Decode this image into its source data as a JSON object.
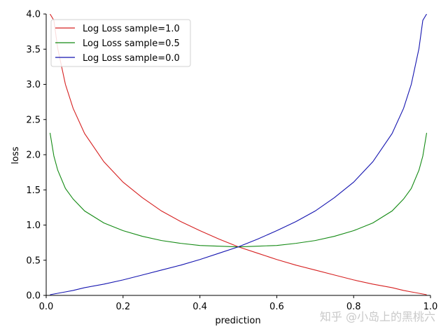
{
  "chart_data": {
    "type": "line",
    "title": "",
    "xlabel": "prediction",
    "ylabel": "loss",
    "xlim": [
      0.0,
      1.0
    ],
    "ylim": [
      0.0,
      4.0
    ],
    "x_ticks": [
      0.0,
      0.2,
      0.4,
      0.6,
      0.8,
      1.0
    ],
    "x_tick_labels": [
      "0.0",
      "0.2",
      "0.4",
      "0.6",
      "0.8",
      "1.0"
    ],
    "y_ticks": [
      0.0,
      0.5,
      1.0,
      1.5,
      2.0,
      2.5,
      3.0,
      3.5,
      4.0
    ],
    "y_tick_labels": [
      "0.0",
      "0.5",
      "1.0",
      "1.5",
      "2.0",
      "2.5",
      "3.0",
      "3.5",
      "4.0"
    ],
    "grid": false,
    "legend_position": "top-left",
    "x": [
      0.01,
      0.02,
      0.03,
      0.05,
      0.07,
      0.1,
      0.15,
      0.2,
      0.25,
      0.3,
      0.35,
      0.4,
      0.45,
      0.5,
      0.55,
      0.6,
      0.65,
      0.7,
      0.75,
      0.8,
      0.85,
      0.9,
      0.93,
      0.95,
      0.97,
      0.98,
      0.99
    ],
    "series": [
      {
        "name": "Log Loss sample=1.0",
        "color": "#d62020",
        "values": [
          4.0,
          3.91,
          3.51,
          3.0,
          2.66,
          2.3,
          1.9,
          1.61,
          1.39,
          1.2,
          1.05,
          0.92,
          0.8,
          0.69,
          0.6,
          0.51,
          0.43,
          0.36,
          0.29,
          0.22,
          0.16,
          0.11,
          0.07,
          0.05,
          0.03,
          0.02,
          0.01
        ]
      },
      {
        "name": "Log Loss sample=0.5",
        "color": "#138a13",
        "values": [
          2.31,
          1.98,
          1.78,
          1.52,
          1.37,
          1.2,
          1.03,
          0.92,
          0.84,
          0.78,
          0.74,
          0.71,
          0.7,
          0.69,
          0.7,
          0.71,
          0.74,
          0.78,
          0.84,
          0.92,
          1.03,
          1.2,
          1.37,
          1.52,
          1.78,
          1.98,
          2.31
        ]
      },
      {
        "name": "Log Loss sample=0.0",
        "color": "#1515b0",
        "values": [
          0.01,
          0.02,
          0.03,
          0.05,
          0.07,
          0.11,
          0.16,
          0.22,
          0.29,
          0.36,
          0.43,
          0.51,
          0.6,
          0.69,
          0.8,
          0.92,
          1.05,
          1.2,
          1.39,
          1.61,
          1.9,
          2.3,
          2.66,
          3.0,
          3.51,
          3.91,
          4.0
        ]
      }
    ]
  },
  "watermark": "知乎 @小岛上的黑桃六"
}
